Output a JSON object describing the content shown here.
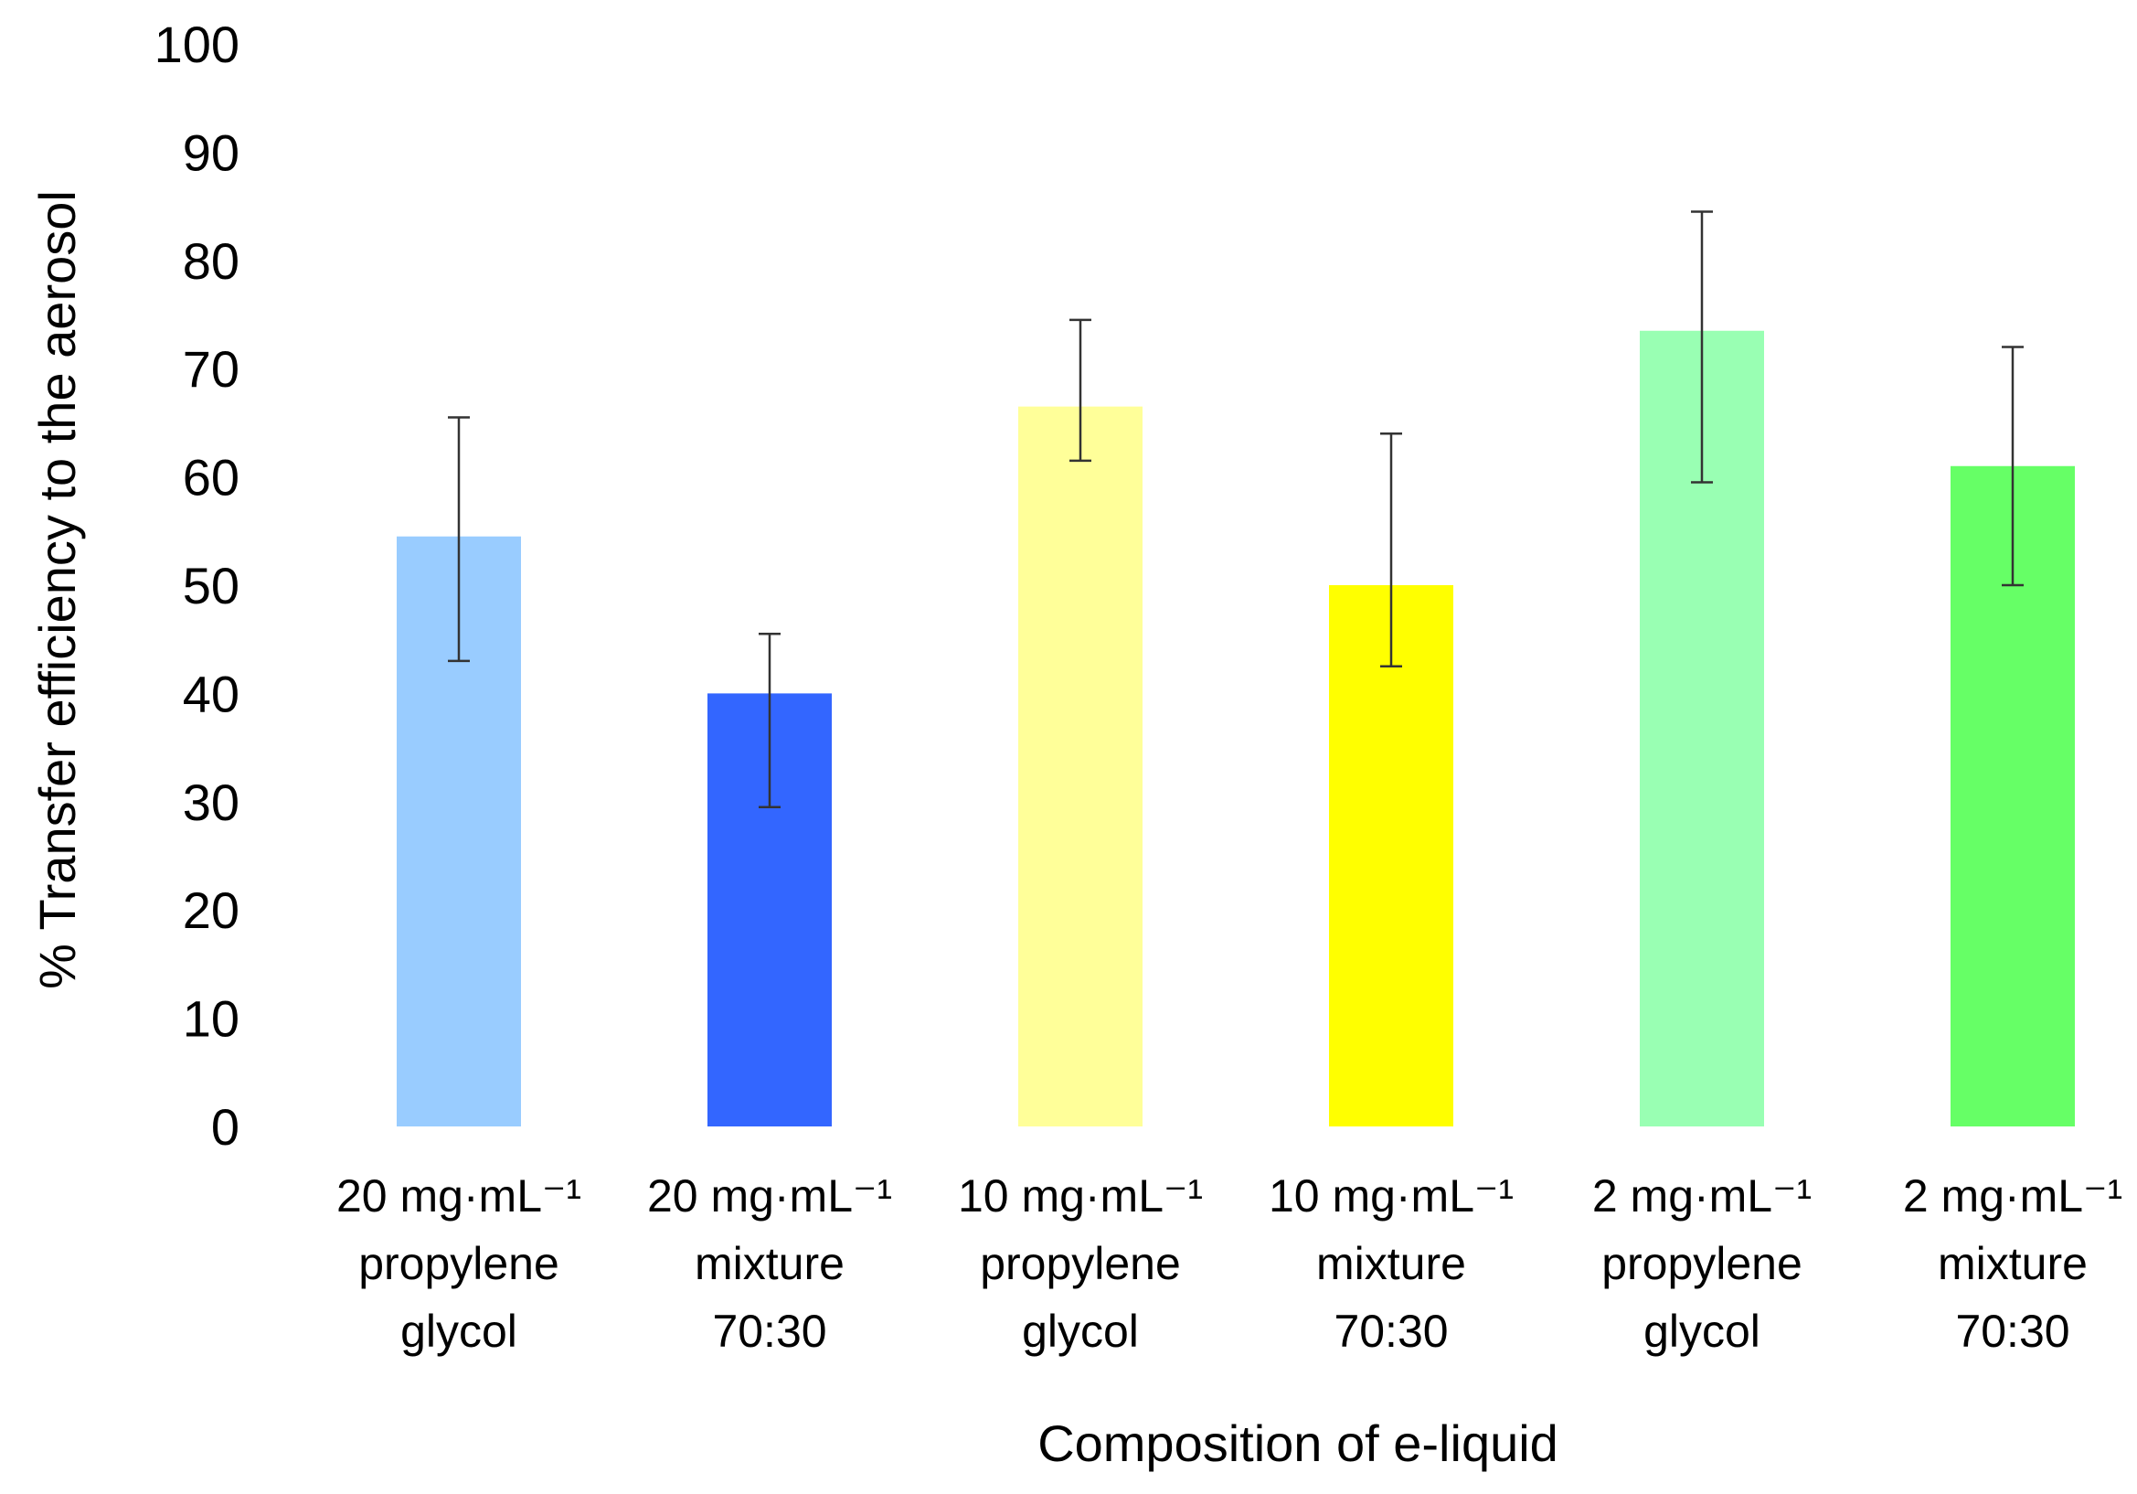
{
  "chart_data": {
    "type": "bar",
    "title": "",
    "xlabel": "Composition of  e-liquid",
    "ylabel": "% Transfer efficiency to the aerosol",
    "ylim": [
      0,
      100
    ],
    "yticks": [
      0,
      10,
      20,
      30,
      40,
      50,
      60,
      70,
      80,
      90,
      100
    ],
    "grid": false,
    "legend": "none",
    "categories": [
      [
        "20 mg·mL⁻¹",
        "propylene",
        "glycol"
      ],
      [
        "20 mg·mL⁻¹",
        "mixture",
        "70:30"
      ],
      [
        "10 mg·mL⁻¹",
        "propylene",
        "glycol"
      ],
      [
        "10 mg·mL⁻¹",
        "mixture",
        "70:30"
      ],
      [
        "2 mg·mL⁻¹",
        "propylene",
        "glycol"
      ],
      [
        "2 mg·mL⁻¹",
        "mixture",
        "70:30"
      ]
    ],
    "values": [
      54.5,
      40,
      66.5,
      50,
      73.5,
      61
    ],
    "error_low": [
      43,
      29.5,
      61.5,
      42.5,
      59.5,
      50
    ],
    "error_high": [
      65.5,
      45.5,
      74.5,
      64,
      84.5,
      72
    ],
    "colors": [
      "#99ccff",
      "#3366ff",
      "#ffff99",
      "#ffff00",
      "#99ffb3",
      "#66ff66"
    ]
  }
}
